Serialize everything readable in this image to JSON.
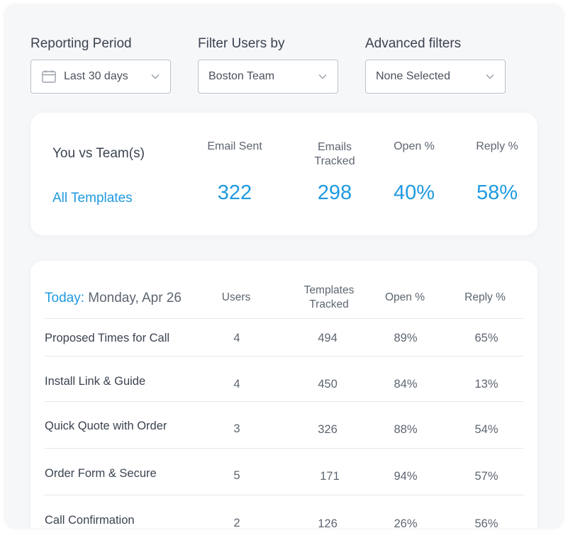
{
  "filters": {
    "period": {
      "label": "Reporting Period",
      "value": "Last 30 days"
    },
    "users": {
      "label": "Filter Users by",
      "value": "Boston Team"
    },
    "advanced": {
      "label": "Advanced filters",
      "value": "None Selected"
    }
  },
  "summary": {
    "title": "You vs Team(s)",
    "link": "All Templates",
    "columns": [
      {
        "head_line1": "Email Sent",
        "head_line2": "",
        "value": "322"
      },
      {
        "head_line1": "Emails",
        "head_line2": "Tracked",
        "value": "298"
      },
      {
        "head_line1": "Open %",
        "head_line2": "",
        "value": "40%"
      },
      {
        "head_line1": "Reply %",
        "head_line2": "",
        "value": "58%"
      }
    ]
  },
  "detail": {
    "today_label": "Today:",
    "date": "Monday, Apr 26",
    "headers": {
      "users": "Users",
      "templates_line1": "Templates",
      "templates_line2": "Tracked",
      "open": "Open %",
      "reply": "Reply %"
    },
    "rows": [
      {
        "name": "Proposed Times for Call",
        "users": "4",
        "tracked": "494",
        "open": "89%",
        "reply": "65%"
      },
      {
        "name": "Install Link  & Guide",
        "users": "4",
        "tracked": "450",
        "open": "84%",
        "reply": "13%"
      },
      {
        "name": "Quick Quote with Order",
        "users": "3",
        "tracked": "326",
        "open": "88%",
        "reply": "54%"
      },
      {
        "name": "Order Form & Secure",
        "users": "5",
        "tracked": "171",
        "open": "94%",
        "reply": "57%"
      },
      {
        "name": "Call Confirmation",
        "users": "2",
        "tracked": "126",
        "open": "26%",
        "reply": "56%"
      }
    ]
  },
  "colors": {
    "accent": "#1f9ae0",
    "text": "#3b4350",
    "muted": "#5d6570",
    "background": "#f6f7f9"
  },
  "icons": {
    "calendar": "calendar-icon",
    "dropdown": "chevron-down-icon"
  }
}
